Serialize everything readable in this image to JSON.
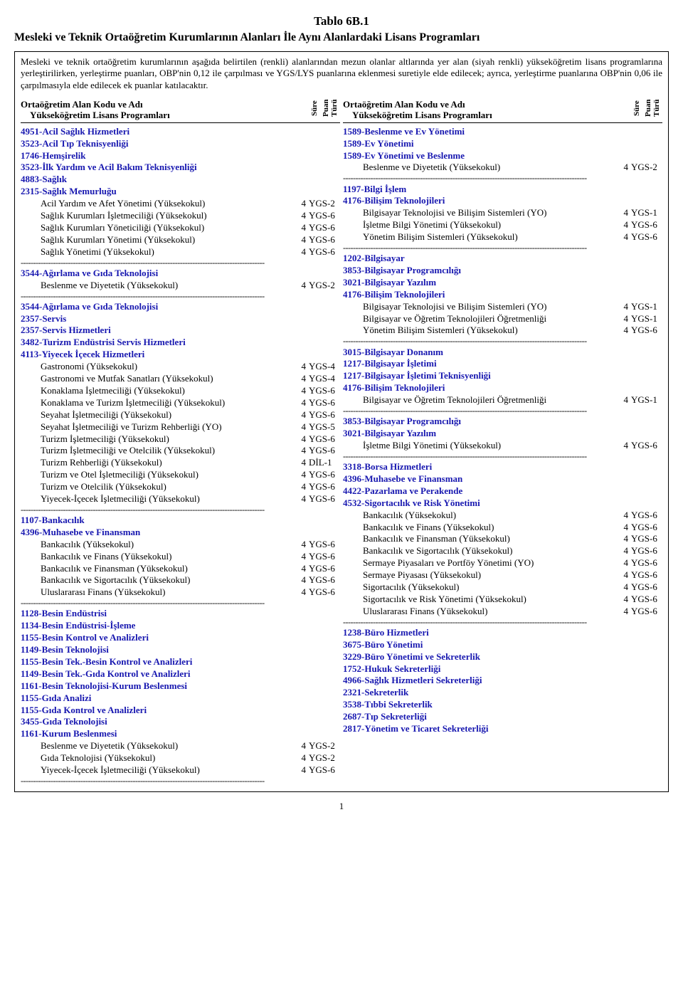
{
  "title": "Tablo 6B.1",
  "subtitle": "Mesleki ve Teknik Ortaöğretim Kurumlarının Alanları İle Aynı Alanlardaki Lisans Programları",
  "intro": "Mesleki ve teknik ortaöğretim kurumlarının aşağıda belirtilen (renkli) alanlarından mezun olanlar altlarında yer alan (siyah renkli) yükseköğretim lisans programlarına yerleştirilirken, yerleştirme puanları, OBP'nin 0,12 ile çarpılması ve YGS/LYS puanlarına eklenmesi suretiyle elde edilecek; ayrıca, yerleştirme puanlarına OBP'nin 0,06 ile çarpılmasıyla elde edilecek ek puanlar katılacaktır.",
  "head": {
    "main1": "Ortaöğretim Alan Kodu ve Adı",
    "main2": "Yükseköğretim Lisans Programları",
    "sure": "Süre",
    "puan": "Puan Türü"
  },
  "sep": "--------------------------------------------------------------------------------------------------",
  "left": [
    {
      "t": "head",
      "txt": "4951-Acil Sağlık Hizmetleri"
    },
    {
      "t": "head",
      "txt": "3523-Acil Tıp Teknisyenliği"
    },
    {
      "t": "head",
      "txt": "1746-Hemşirelik"
    },
    {
      "t": "head",
      "txt": "3523-İlk Yardım ve Acil Bakım Teknisyenliği"
    },
    {
      "t": "head",
      "txt": "4883-Sağlık"
    },
    {
      "t": "head",
      "txt": "2315-Sağlık Memurluğu"
    },
    {
      "t": "prog",
      "txt": "Acil Yardım ve Afet Yönetimi (Yüksekokul)",
      "sure": "4",
      "puan": "YGS-2"
    },
    {
      "t": "prog",
      "txt": "Sağlık Kurumları İşletmeciliği (Yüksekokul)",
      "sure": "4",
      "puan": "YGS-6"
    },
    {
      "t": "prog",
      "txt": "Sağlık Kurumları Yöneticiliği (Yüksekokul)",
      "sure": "4",
      "puan": "YGS-6"
    },
    {
      "t": "prog",
      "txt": "Sağlık Kurumları Yönetimi (Yüksekokul)",
      "sure": "4",
      "puan": "YGS-6"
    },
    {
      "t": "prog",
      "txt": "Sağlık Yönetimi (Yüksekokul)",
      "sure": "4",
      "puan": "YGS-6"
    },
    {
      "t": "sep"
    },
    {
      "t": "head",
      "txt": "3544-Ağırlama ve Gıda Teknolojisi"
    },
    {
      "t": "prog",
      "txt": "Beslenme ve Diyetetik (Yüksekokul)",
      "sure": "4",
      "puan": "YGS-2"
    },
    {
      "t": "sep"
    },
    {
      "t": "head",
      "txt": "3544-Ağırlama ve Gıda Teknolojisi"
    },
    {
      "t": "head",
      "txt": "2357-Servis"
    },
    {
      "t": "head",
      "txt": "2357-Servis Hizmetleri"
    },
    {
      "t": "head",
      "txt": "3482-Turizm Endüstrisi Servis Hizmetleri"
    },
    {
      "t": "head",
      "txt": "4113-Yiyecek İçecek Hizmetleri"
    },
    {
      "t": "prog",
      "txt": "Gastronomi (Yüksekokul)",
      "sure": "4",
      "puan": "YGS-4"
    },
    {
      "t": "prog",
      "txt": "Gastronomi ve Mutfak Sanatları (Yüksekokul)",
      "sure": "4",
      "puan": "YGS-4"
    },
    {
      "t": "prog",
      "txt": "Konaklama İşletmeciliği (Yüksekokul)",
      "sure": "4",
      "puan": "YGS-6"
    },
    {
      "t": "prog",
      "txt": "Konaklama ve Turizm İşletmeciliği (Yüksekokul)",
      "sure": "4",
      "puan": "YGS-6"
    },
    {
      "t": "prog",
      "txt": "Seyahat İşletmeciliği (Yüksekokul)",
      "sure": "4",
      "puan": "YGS-6"
    },
    {
      "t": "prog",
      "txt": "Seyahat İşletmeciliği ve Turizm Rehberliği (YO)",
      "sure": "4",
      "puan": "YGS-5"
    },
    {
      "t": "prog",
      "txt": "Turizm İşletmeciliği (Yüksekokul)",
      "sure": "4",
      "puan": "YGS-6"
    },
    {
      "t": "prog",
      "txt": "Turizm İşletmeciliği ve Otelcilik (Yüksekokul)",
      "sure": "4",
      "puan": "YGS-6"
    },
    {
      "t": "prog",
      "txt": "Turizm Rehberliği (Yüksekokul)",
      "sure": "4",
      "puan": "DİL-1"
    },
    {
      "t": "prog",
      "txt": "Turizm ve Otel İşletmeciliği (Yüksekokul)",
      "sure": "4",
      "puan": "YGS-6"
    },
    {
      "t": "prog",
      "txt": "Turizm ve Otelcilik (Yüksekokul)",
      "sure": "4",
      "puan": "YGS-6"
    },
    {
      "t": "prog",
      "txt": "Yiyecek-İçecek İşletmeciliği (Yüksekokul)",
      "sure": "4",
      "puan": "YGS-6"
    },
    {
      "t": "sep"
    },
    {
      "t": "head",
      "txt": "1107-Bankacılık"
    },
    {
      "t": "head",
      "txt": "4396-Muhasebe ve Finansman"
    },
    {
      "t": "prog",
      "txt": "Bankacılık (Yüksekokul)",
      "sure": "4",
      "puan": "YGS-6"
    },
    {
      "t": "prog",
      "txt": "Bankacılık ve Finans (Yüksekokul)",
      "sure": "4",
      "puan": "YGS-6"
    },
    {
      "t": "prog",
      "txt": "Bankacılık ve Finansman (Yüksekokul)",
      "sure": "4",
      "puan": "YGS-6"
    },
    {
      "t": "prog",
      "txt": "Bankacılık ve Sigortacılık (Yüksekokul)",
      "sure": "4",
      "puan": "YGS-6"
    },
    {
      "t": "prog",
      "txt": "Uluslararası Finans (Yüksekokul)",
      "sure": "4",
      "puan": "YGS-6"
    },
    {
      "t": "sep"
    },
    {
      "t": "head",
      "txt": "1128-Besin Endüstrisi"
    },
    {
      "t": "head",
      "txt": "1134-Besin Endüstrisi-İşleme"
    },
    {
      "t": "head",
      "txt": "1155-Besin Kontrol ve Analizleri"
    },
    {
      "t": "head",
      "txt": "1149-Besin Teknolojisi"
    },
    {
      "t": "head",
      "txt": "1155-Besin Tek.-Besin Kontrol ve Analizleri"
    },
    {
      "t": "head",
      "txt": "1149-Besin Tek.-Gıda Kontrol ve Analizleri"
    },
    {
      "t": "head",
      "txt": "1161-Besin Teknolojisi-Kurum Beslenmesi"
    },
    {
      "t": "head",
      "txt": "1155-Gıda Analizi"
    },
    {
      "t": "head",
      "txt": "1155-Gıda Kontrol ve Analizleri"
    },
    {
      "t": "head",
      "txt": "3455-Gıda Teknolojisi"
    },
    {
      "t": "head",
      "txt": "1161-Kurum Beslenmesi"
    },
    {
      "t": "prog",
      "txt": "Beslenme ve Diyetetik (Yüksekokul)",
      "sure": "4",
      "puan": "YGS-2"
    },
    {
      "t": "prog",
      "txt": "Gıda Teknolojisi (Yüksekokul)",
      "sure": "4",
      "puan": "YGS-2"
    },
    {
      "t": "prog",
      "txt": "Yiyecek-İçecek İşletmeciliği (Yüksekokul)",
      "sure": "4",
      "puan": "YGS-6"
    },
    {
      "t": "sep"
    }
  ],
  "right": [
    {
      "t": "head",
      "txt": "1589-Beslenme ve Ev Yönetimi"
    },
    {
      "t": "head",
      "txt": "1589-Ev Yönetimi"
    },
    {
      "t": "head",
      "txt": "1589-Ev Yönetimi ve Beslenme"
    },
    {
      "t": "prog",
      "txt": "Beslenme ve Diyetetik (Yüksekokul)",
      "sure": "4",
      "puan": "YGS-2"
    },
    {
      "t": "sep"
    },
    {
      "t": "head",
      "txt": "1197-Bilgi İşlem"
    },
    {
      "t": "head",
      "txt": "4176-Bilişim Teknolojileri"
    },
    {
      "t": "prog",
      "txt": "Bilgisayar Teknolojisi ve Bilişim Sistemleri (YO)",
      "sure": "4",
      "puan": "YGS-1"
    },
    {
      "t": "prog",
      "txt": "İşletme Bilgi Yönetimi (Yüksekokul)",
      "sure": "4",
      "puan": "YGS-6"
    },
    {
      "t": "prog",
      "txt": "Yönetim Bilişim Sistemleri (Yüksekokul)",
      "sure": "4",
      "puan": "YGS-6"
    },
    {
      "t": "sep"
    },
    {
      "t": "head",
      "txt": "1202-Bilgisayar"
    },
    {
      "t": "head",
      "txt": "3853-Bilgisayar Programcılığı"
    },
    {
      "t": "head",
      "txt": "3021-Bilgisayar Yazılım"
    },
    {
      "t": "head",
      "txt": "4176-Bilişim Teknolojileri"
    },
    {
      "t": "prog",
      "txt": "Bilgisayar Teknolojisi ve Bilişim Sistemleri (YO)",
      "sure": "4",
      "puan": "YGS-1"
    },
    {
      "t": "prog",
      "txt": "Bilgisayar ve Öğretim Teknolojileri Öğretmenliği",
      "sure": "4",
      "puan": "YGS-1"
    },
    {
      "t": "prog",
      "txt": "Yönetim Bilişim Sistemleri (Yüksekokul)",
      "sure": "4",
      "puan": "YGS-6"
    },
    {
      "t": "sep"
    },
    {
      "t": "head",
      "txt": "3015-Bilgisayar Donanım"
    },
    {
      "t": "head",
      "txt": "1217-Bilgisayar İşletimi"
    },
    {
      "t": "head",
      "txt": "1217-Bilgisayar İşletimi Teknisyenliği"
    },
    {
      "t": "head",
      "txt": "4176-Bilişim Teknolojileri"
    },
    {
      "t": "prog",
      "txt": "Bilgisayar ve Öğretim Teknolojileri Öğretmenliği",
      "sure": "4",
      "puan": "YGS-1"
    },
    {
      "t": "sep"
    },
    {
      "t": "head",
      "txt": "3853-Bilgisayar Programcılığı"
    },
    {
      "t": "head",
      "txt": "3021-Bilgisayar Yazılım"
    },
    {
      "t": "prog",
      "txt": "İşletme Bilgi Yönetimi (Yüksekokul)",
      "sure": "4",
      "puan": "YGS-6"
    },
    {
      "t": "sep"
    },
    {
      "t": "head",
      "txt": "3318-Borsa Hizmetleri"
    },
    {
      "t": "head",
      "txt": "4396-Muhasebe ve Finansman"
    },
    {
      "t": "head",
      "txt": "4422-Pazarlama ve Perakende"
    },
    {
      "t": "head",
      "txt": "4532-Sigortacılık ve Risk Yönetimi"
    },
    {
      "t": "prog",
      "txt": "Bankacılık (Yüksekokul)",
      "sure": "4",
      "puan": "YGS-6"
    },
    {
      "t": "prog",
      "txt": "Bankacılık ve Finans (Yüksekokul)",
      "sure": "4",
      "puan": "YGS-6"
    },
    {
      "t": "prog",
      "txt": "Bankacılık ve Finansman (Yüksekokul)",
      "sure": "4",
      "puan": "YGS-6"
    },
    {
      "t": "prog",
      "txt": "Bankacılık ve Sigortacılık (Yüksekokul)",
      "sure": "4",
      "puan": "YGS-6"
    },
    {
      "t": "prog",
      "txt": "Sermaye Piyasaları ve Portföy Yönetimi (YO)",
      "sure": "4",
      "puan": "YGS-6"
    },
    {
      "t": "prog",
      "txt": "Sermaye Piyasası (Yüksekokul)",
      "sure": "4",
      "puan": "YGS-6"
    },
    {
      "t": "prog",
      "txt": "Sigortacılık (Yüksekokul)",
      "sure": "4",
      "puan": "YGS-6"
    },
    {
      "t": "prog",
      "txt": "Sigortacılık ve Risk Yönetimi (Yüksekokul)",
      "sure": "4",
      "puan": "YGS-6"
    },
    {
      "t": "prog",
      "txt": "Uluslararası Finans (Yüksekokul)",
      "sure": "4",
      "puan": "YGS-6"
    },
    {
      "t": "sep"
    },
    {
      "t": "head",
      "txt": "1238-Büro Hizmetleri"
    },
    {
      "t": "head",
      "txt": "3675-Büro Yönetimi"
    },
    {
      "t": "head",
      "txt": "3229-Büro Yönetimi ve Sekreterlik"
    },
    {
      "t": "head",
      "txt": "1752-Hukuk Sekreterliği"
    },
    {
      "t": "head",
      "txt": "4966-Sağlık Hizmetleri Sekreterliği"
    },
    {
      "t": "head",
      "txt": "2321-Sekreterlik"
    },
    {
      "t": "head",
      "txt": "3538-Tıbbi Sekreterlik"
    },
    {
      "t": "head",
      "txt": "2687-Tıp Sekreterliği"
    },
    {
      "t": "head",
      "txt": "2817-Yönetim ve Ticaret Sekreterliği"
    }
  ],
  "page_number": "1"
}
